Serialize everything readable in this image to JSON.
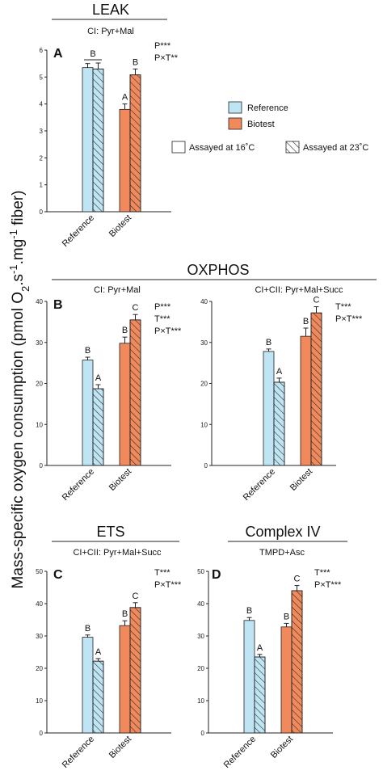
{
  "y_axis_label_parts": {
    "a": "Mass-specific oxygen consumption (pmol O",
    "b": "2",
    "c": ".s",
    "d": "-1",
    "e": ".mg",
    "f": "-1",
    "g": " fiber)"
  },
  "legend": {
    "reference": "Reference",
    "biotest": "Biotest",
    "assayed_16": "Assayed at 16˚C",
    "assayed_23": "Assayed at 23˚C"
  },
  "colors": {
    "reference": "#bfe4f3",
    "biotest": "#f08a5d",
    "axis": "#222222"
  },
  "sections": {
    "leak": "LEAK",
    "oxphos": "OXPHOS",
    "ets": "ETS",
    "complex_iv": "Complex IV"
  },
  "chart_data": [
    {
      "type": "bar",
      "panel": "A",
      "subtitle": "CI: Pyr+Mal",
      "categories": [
        "Reference",
        "Biotest"
      ],
      "ylim": [
        0,
        6
      ],
      "yticks": [
        0,
        1,
        2,
        3,
        4,
        5,
        6
      ],
      "series": [
        {
          "name": "Assayed at 16˚C",
          "values": [
            5.35,
            3.8
          ],
          "errors": [
            0.15,
            0.2
          ]
        },
        {
          "name": "Assayed at 23˚C",
          "values": [
            5.3,
            5.08
          ],
          "errors": [
            0.22,
            0.22
          ]
        }
      ],
      "letters": [
        [
          "B",
          "A"
        ],
        [
          "B",
          "B"
        ]
      ],
      "letter_bracket": [
        true,
        false
      ],
      "stats": [
        "P***",
        "P×T**"
      ]
    },
    {
      "type": "bar",
      "panel": "B",
      "subtitle": "CI: Pyr+Mal",
      "categories": [
        "Reference",
        "Biotest"
      ],
      "ylim": [
        0,
        40
      ],
      "yticks": [
        0,
        10,
        20,
        30,
        40
      ],
      "series": [
        {
          "name": "Assayed at 16˚C",
          "values": [
            25.7,
            29.8
          ],
          "errors": [
            0.7,
            1.5
          ]
        },
        {
          "name": "Assayed at 23˚C",
          "values": [
            18.7,
            35.5
          ],
          "errors": [
            1.0,
            1.3
          ]
        }
      ],
      "letters": [
        [
          "B",
          "B"
        ],
        [
          "A",
          "C"
        ]
      ],
      "letter_bracket": [
        false,
        false
      ],
      "stats": [
        "P***",
        "T***",
        "P×T***"
      ]
    },
    {
      "type": "bar",
      "panel": "B2",
      "subtitle": "CI+CII: Pyr+Mal+Succ",
      "categories": [
        "Reference",
        "Biotest"
      ],
      "ylim": [
        0,
        40
      ],
      "yticks": [
        0,
        10,
        20,
        30,
        40
      ],
      "series": [
        {
          "name": "Assayed at 16˚C",
          "values": [
            27.8,
            31.5
          ],
          "errors": [
            0.6,
            2.0
          ]
        },
        {
          "name": "Assayed at 23˚C",
          "values": [
            20.3,
            37.2
          ],
          "errors": [
            1.0,
            1.5
          ]
        }
      ],
      "letters": [
        [
          "B",
          "B"
        ],
        [
          "A",
          "C"
        ]
      ],
      "letter_bracket": [
        false,
        false
      ],
      "stats": [
        "T***",
        "P×T***"
      ]
    },
    {
      "type": "bar",
      "panel": "C",
      "subtitle": "CI+CII: Pyr+Mal+Succ",
      "categories": [
        "Reference",
        "Biotest"
      ],
      "ylim": [
        0,
        50
      ],
      "yticks": [
        0,
        10,
        20,
        30,
        40,
        50
      ],
      "series": [
        {
          "name": "Assayed at 16˚C",
          "values": [
            29.6,
            33.2
          ],
          "errors": [
            0.7,
            1.5
          ]
        },
        {
          "name": "Assayed at 23˚C",
          "values": [
            22.2,
            38.8
          ],
          "errors": [
            0.8,
            1.5
          ]
        }
      ],
      "letters": [
        [
          "B",
          "B"
        ],
        [
          "A",
          "C"
        ]
      ],
      "letter_bracket": [
        false,
        false
      ],
      "stats": [
        "T***",
        "P×T***"
      ]
    },
    {
      "type": "bar",
      "panel": "D",
      "subtitle": "TMPD+Asc",
      "categories": [
        "Reference",
        "Biotest"
      ],
      "ylim": [
        0,
        50
      ],
      "yticks": [
        0,
        10,
        20,
        30,
        40,
        50
      ],
      "series": [
        {
          "name": "Assayed at 16˚C",
          "values": [
            34.8,
            32.8
          ],
          "errors": [
            0.9,
            1.1
          ]
        },
        {
          "name": "Assayed at 23˚C",
          "values": [
            23.5,
            44.0
          ],
          "errors": [
            0.8,
            1.6
          ]
        }
      ],
      "letters": [
        [
          "B",
          "B"
        ],
        [
          "A",
          "C"
        ]
      ],
      "letter_bracket": [
        false,
        false
      ],
      "stats": [
        "T***",
        "P×T***"
      ]
    }
  ]
}
